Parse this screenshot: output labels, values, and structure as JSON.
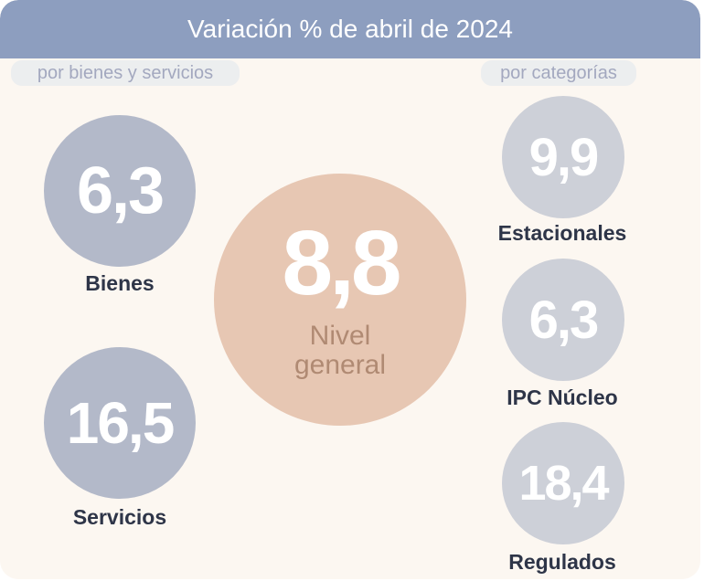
{
  "header": {
    "title": "Variación % de abril de 2024"
  },
  "groups": {
    "left_title": "por bienes y servicios",
    "right_title": "por categorías"
  },
  "center": {
    "value": "8,8",
    "label_line1": "Nivel",
    "label_line2": "general"
  },
  "left_items": [
    {
      "value": "6,3",
      "label": "Bienes"
    },
    {
      "value": "16,5",
      "label": "Servicios"
    }
  ],
  "right_items": [
    {
      "value": "9,9",
      "label": "Estacionales"
    },
    {
      "value": "6,3",
      "label": "IPC Núcleo"
    },
    {
      "value": "18,4",
      "label": "Regulados"
    }
  ],
  "colors": {
    "header": "#8d9ebf",
    "center_circle": "#e7c7b3",
    "left_circles": "#b3b9c9",
    "right_circles": "#cdd0d8",
    "background": "#fcf7f1"
  }
}
